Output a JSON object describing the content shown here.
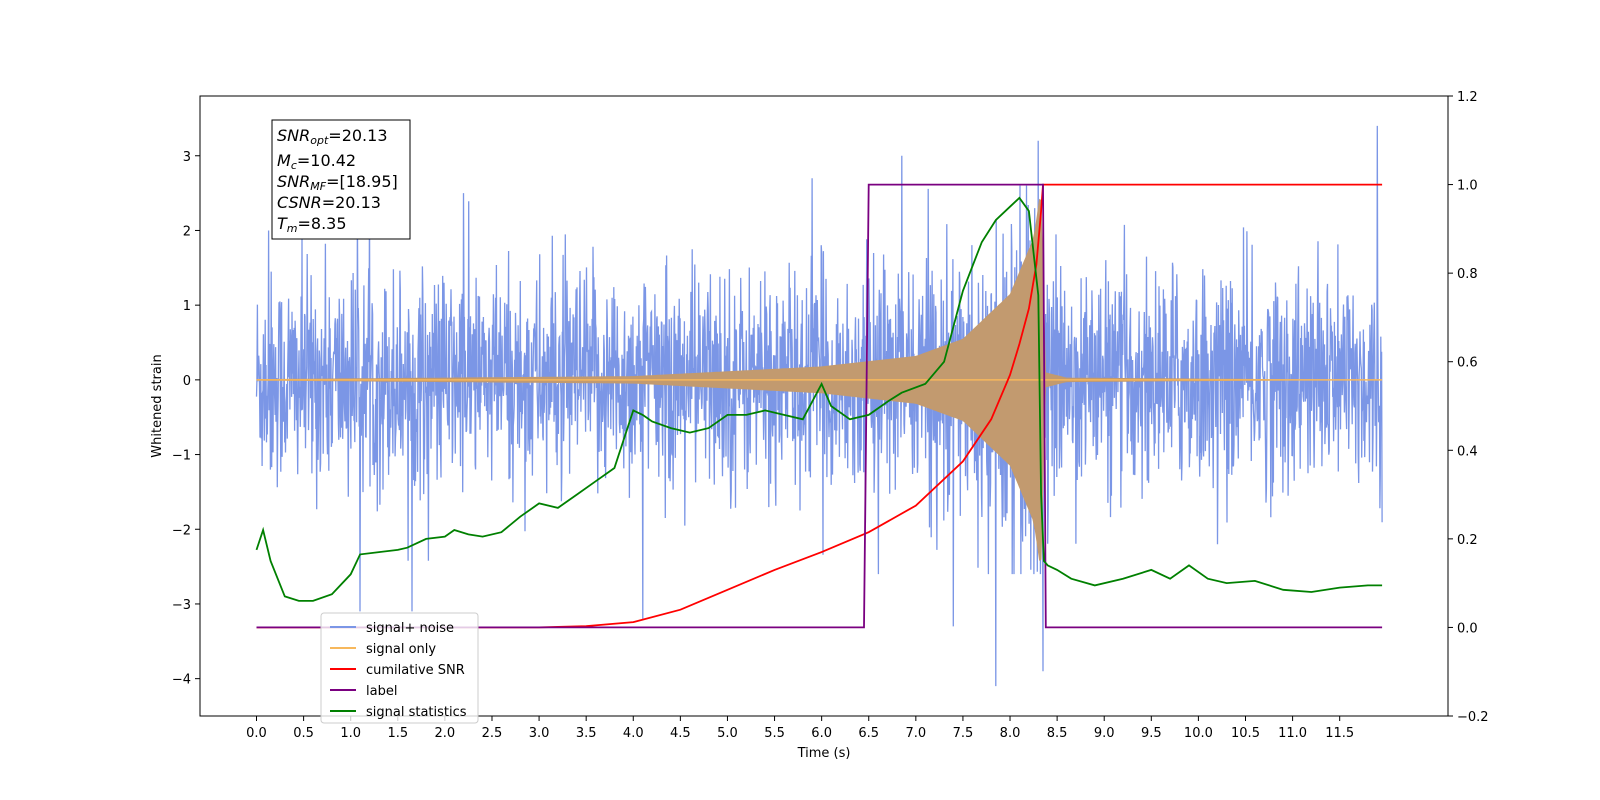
{
  "chart_data": {
    "type": "line",
    "title": "",
    "xlabel": "Time (s)",
    "ylabel": "Whitened strain",
    "y2label": "",
    "xlim": [
      -0.6,
      12.65
    ],
    "ylim": [
      -4.5,
      3.8
    ],
    "y2lim": [
      -0.2,
      1.2
    ],
    "x_ticks": [
      0.0,
      0.5,
      1.0,
      1.5,
      2.0,
      2.5,
      3.0,
      3.5,
      4.0,
      4.5,
      5.0,
      5.5,
      6.0,
      6.5,
      7.0,
      7.5,
      8.0,
      8.5,
      9.0,
      9.5,
      10.0,
      10.5,
      11.0,
      11.5
    ],
    "x_tick_labels": [
      "0.0",
      "0.5",
      "1.0",
      "1.5",
      "2.0",
      "2.5",
      "3.0",
      "3.5",
      "4.0",
      "4.5",
      "5.0",
      "5.5",
      "6.0",
      "6.5",
      "7.0",
      "7.5",
      "8.0",
      "8.5",
      "9.0",
      "9.5",
      "10.0",
      "10.5",
      "11.0",
      "11.5"
    ],
    "y_ticks": [
      3,
      2,
      1,
      0,
      -1,
      -2,
      -3,
      -4
    ],
    "y_tick_labels": [
      "3",
      "2",
      "1",
      "0",
      "−1",
      "−2",
      "−3",
      "−4"
    ],
    "y2_ticks": [
      1.2,
      1.0,
      0.8,
      0.6,
      0.4,
      0.2,
      0.0,
      -0.2
    ],
    "y2_tick_labels": [
      "1.2",
      "1.0",
      "0.8",
      "0.6",
      "0.4",
      "0.2",
      "0.0",
      "−0.2"
    ],
    "grid": false,
    "legend_position": "lower-left",
    "info_box": {
      "snr_opt": {
        "name": "SNR",
        "sub": "opt",
        "value": "=20.13"
      },
      "mc": {
        "name": "M",
        "sub": "c",
        "value": "=10.42"
      },
      "snr_mf": {
        "name": "SNR",
        "sub": "MF",
        "value": "=[18.95]"
      },
      "csnr": {
        "name": "CSNR",
        "value": "=20.13"
      },
      "tm": {
        "name": "T",
        "sub": "m",
        "value": "=8.35"
      }
    },
    "signal_noise": {
      "name": "signal+ noise",
      "color": "#7b96e6",
      "description_of_envelope": {
        "typical_upper": 1.6,
        "typical_lower": -1.6,
        "spike_x": [
          0.13,
          1.1,
          1.65,
          2.2,
          4.1,
          5.9,
          6.85,
          7.4,
          7.85,
          8.3,
          8.35,
          11.9
        ],
        "spike_y": [
          2.0,
          -3.1,
          -3.1,
          2.5,
          -3.2,
          2.7,
          3.0,
          -3.3,
          -4.1,
          3.2,
          -3.9,
          3.4
        ]
      }
    },
    "signal_only": {
      "name": "signal only",
      "color": "#f7b85c",
      "fill_color": "#c29a6f",
      "t_merge": 8.35,
      "env_at": [
        [
          0.0,
          0.01
        ],
        [
          4.0,
          0.05
        ],
        [
          6.0,
          0.18
        ],
        [
          7.0,
          0.32
        ],
        [
          7.5,
          0.55
        ],
        [
          8.0,
          1.15
        ],
        [
          8.25,
          1.9
        ],
        [
          8.33,
          2.6
        ],
        [
          8.38,
          0.1
        ],
        [
          8.6,
          0.03
        ],
        [
          11.95,
          0.0
        ]
      ]
    },
    "series": [
      {
        "name": "cumilative SNR",
        "color": "#ff0000",
        "axis": "right",
        "x": [
          0.0,
          2.0,
          3.0,
          3.5,
          4.0,
          4.5,
          5.0,
          5.5,
          6.0,
          6.5,
          7.0,
          7.5,
          7.8,
          8.0,
          8.1,
          8.2,
          8.28,
          8.33,
          8.35,
          11.95
        ],
        "y": [
          0.0,
          0.0,
          0.0,
          0.003,
          0.012,
          0.04,
          0.085,
          0.13,
          0.17,
          0.215,
          0.275,
          0.375,
          0.47,
          0.57,
          0.64,
          0.72,
          0.82,
          0.94,
          1.0,
          1.0
        ]
      },
      {
        "name": "label",
        "color": "#7a0080",
        "axis": "right",
        "x": [
          0.0,
          6.45,
          6.5,
          8.35,
          8.38,
          11.95
        ],
        "y": [
          0.0,
          0.0,
          1.0,
          1.0,
          0.0,
          0.0
        ]
      },
      {
        "name": "signal statistics",
        "color": "#008000",
        "axis": "right",
        "x": [
          0.0,
          0.07,
          0.15,
          0.3,
          0.45,
          0.6,
          0.8,
          1.0,
          1.1,
          1.3,
          1.5,
          1.6,
          1.8,
          2.0,
          2.1,
          2.25,
          2.4,
          2.6,
          2.8,
          3.0,
          3.2,
          3.4,
          3.6,
          3.8,
          4.0,
          4.1,
          4.2,
          4.4,
          4.6,
          4.8,
          5.0,
          5.2,
          5.4,
          5.6,
          5.8,
          6.0,
          6.1,
          6.3,
          6.5,
          6.7,
          6.85,
          7.1,
          7.3,
          7.5,
          7.7,
          7.85,
          8.0,
          8.1,
          8.2,
          8.3,
          8.33,
          8.36,
          8.4,
          8.5,
          8.65,
          8.9,
          9.2,
          9.5,
          9.7,
          9.9,
          10.1,
          10.3,
          10.6,
          10.9,
          11.2,
          11.5,
          11.8,
          11.95
        ],
        "y": [
          0.175,
          0.22,
          0.15,
          0.07,
          0.06,
          0.06,
          0.075,
          0.12,
          0.165,
          0.17,
          0.175,
          0.18,
          0.2,
          0.205,
          0.22,
          0.21,
          0.205,
          0.215,
          0.25,
          0.28,
          0.27,
          0.3,
          0.33,
          0.36,
          0.49,
          0.48,
          0.465,
          0.45,
          0.44,
          0.45,
          0.48,
          0.48,
          0.49,
          0.48,
          0.47,
          0.55,
          0.5,
          0.47,
          0.48,
          0.51,
          0.53,
          0.55,
          0.6,
          0.76,
          0.87,
          0.92,
          0.95,
          0.97,
          0.94,
          0.75,
          0.3,
          0.15,
          0.14,
          0.13,
          0.11,
          0.095,
          0.11,
          0.13,
          0.11,
          0.14,
          0.11,
          0.1,
          0.105,
          0.085,
          0.08,
          0.09,
          0.095,
          0.095
        ]
      }
    ],
    "legend": [
      {
        "name": "signal+ noise",
        "color": "#7b96e6"
      },
      {
        "name": "signal only",
        "color": "#f7b85c"
      },
      {
        "name": "cumilative SNR",
        "color": "#ff0000"
      },
      {
        "name": "label",
        "color": "#7a0080"
      },
      {
        "name": "signal statistics",
        "color": "#008000"
      }
    ]
  }
}
